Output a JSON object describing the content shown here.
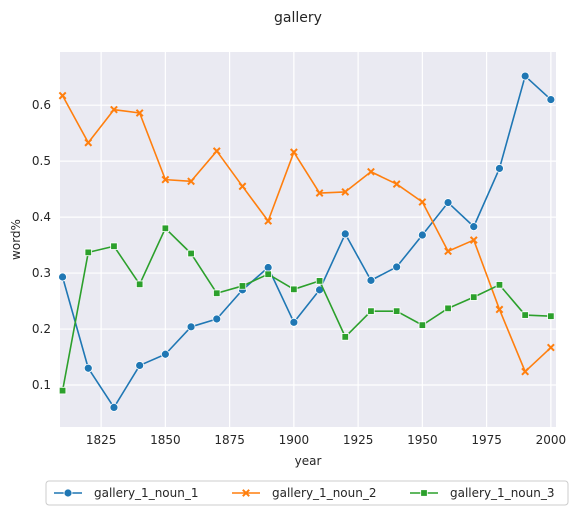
{
  "chart_data": {
    "type": "line",
    "title": "gallery",
    "xlabel": "year",
    "ylabel": "word%",
    "xlim": [
      1809,
      2002
    ],
    "ylim": [
      0.025,
      0.695
    ],
    "xticks": [
      1825,
      1850,
      1875,
      1900,
      1925,
      1950,
      1975,
      2000
    ],
    "yticks": [
      0.1,
      0.2,
      0.3,
      0.4,
      0.5,
      0.6
    ],
    "grid": true,
    "legend_position": "bottom-center",
    "x": [
      1810,
      1820,
      1830,
      1840,
      1850,
      1860,
      1870,
      1880,
      1890,
      1900,
      1910,
      1920,
      1930,
      1940,
      1950,
      1960,
      1970,
      1980,
      1990,
      2000
    ],
    "series": [
      {
        "name": "gallery_1_noun_1",
        "color": "#1f77b4",
        "marker": "circle",
        "values": [
          0.293,
          0.13,
          0.06,
          0.135,
          0.155,
          0.204,
          0.218,
          0.27,
          0.31,
          0.212,
          0.27,
          0.37,
          0.287,
          0.311,
          0.368,
          0.426,
          0.383,
          0.487,
          0.652,
          0.61
        ]
      },
      {
        "name": "gallery_1_noun_2",
        "color": "#ff7f0e",
        "marker": "x",
        "values": [
          0.617,
          0.533,
          0.592,
          0.586,
          0.467,
          0.464,
          0.518,
          0.455,
          0.393,
          0.516,
          0.443,
          0.445,
          0.481,
          0.459,
          0.427,
          0.339,
          0.359,
          0.235,
          0.124,
          0.167
        ]
      },
      {
        "name": "gallery_1_noun_3",
        "color": "#2ca02c",
        "marker": "square",
        "values": [
          0.09,
          0.337,
          0.348,
          0.28,
          0.38,
          0.335,
          0.264,
          0.277,
          0.298,
          0.271,
          0.286,
          0.186,
          0.232,
          0.232,
          0.207,
          0.237,
          0.257,
          0.279,
          0.225,
          0.223
        ]
      }
    ]
  }
}
